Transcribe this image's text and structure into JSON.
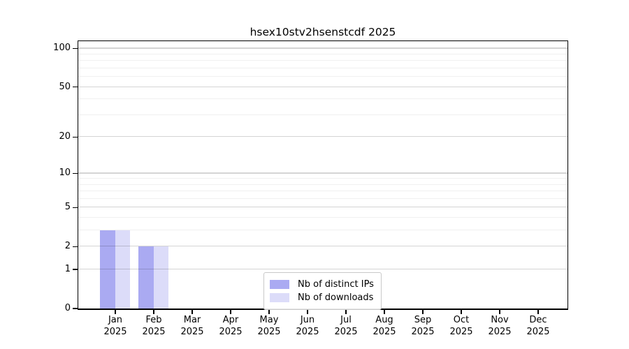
{
  "chart_data": {
    "type": "bar",
    "title": "hsex10stv2hsenstcdf 2025",
    "year": "2025",
    "months": [
      "Jan",
      "Feb",
      "Mar",
      "Apr",
      "May",
      "Jun",
      "Jul",
      "Aug",
      "Sep",
      "Oct",
      "Nov",
      "Dec"
    ],
    "categories": [
      "Jan 2025",
      "Feb 2025",
      "Mar 2025",
      "Apr 2025",
      "May 2025",
      "Jun 2025",
      "Jul 2025",
      "Aug 2025",
      "Sep 2025",
      "Oct 2025",
      "Nov 2025",
      "Dec 2025"
    ],
    "series": [
      {
        "name": "Nb of distinct IPs",
        "color": "#aaaaf2",
        "values": [
          3,
          2,
          0,
          0,
          0,
          0,
          0,
          0,
          0,
          0,
          0,
          0
        ]
      },
      {
        "name": "Nb of downloads",
        "color": "#dcdcf9",
        "values": [
          3,
          2,
          0,
          0,
          0,
          0,
          0,
          0,
          0,
          0,
          0,
          0
        ]
      }
    ],
    "y_axis": {
      "scale": "log1p",
      "major_ticks": [
        0,
        1,
        2,
        5,
        10,
        20,
        50,
        100
      ],
      "minor_ticks": [
        3,
        4,
        6,
        7,
        8,
        9,
        30,
        40,
        60,
        70,
        80,
        90
      ],
      "ylim": [
        0,
        114
      ]
    },
    "x_axis": {
      "tick_label_line2": "2025"
    },
    "legend": {
      "entries": [
        "Nb of distinct IPs",
        "Nb of downloads"
      ],
      "position": "lower center inside"
    },
    "grid": "horizontal",
    "colors": {
      "background": "#ffffff",
      "spine": "#000000",
      "major_grid": "rgba(0,0,0,0.17)",
      "minor_grid": "rgba(0,0,0,0.06)"
    }
  }
}
